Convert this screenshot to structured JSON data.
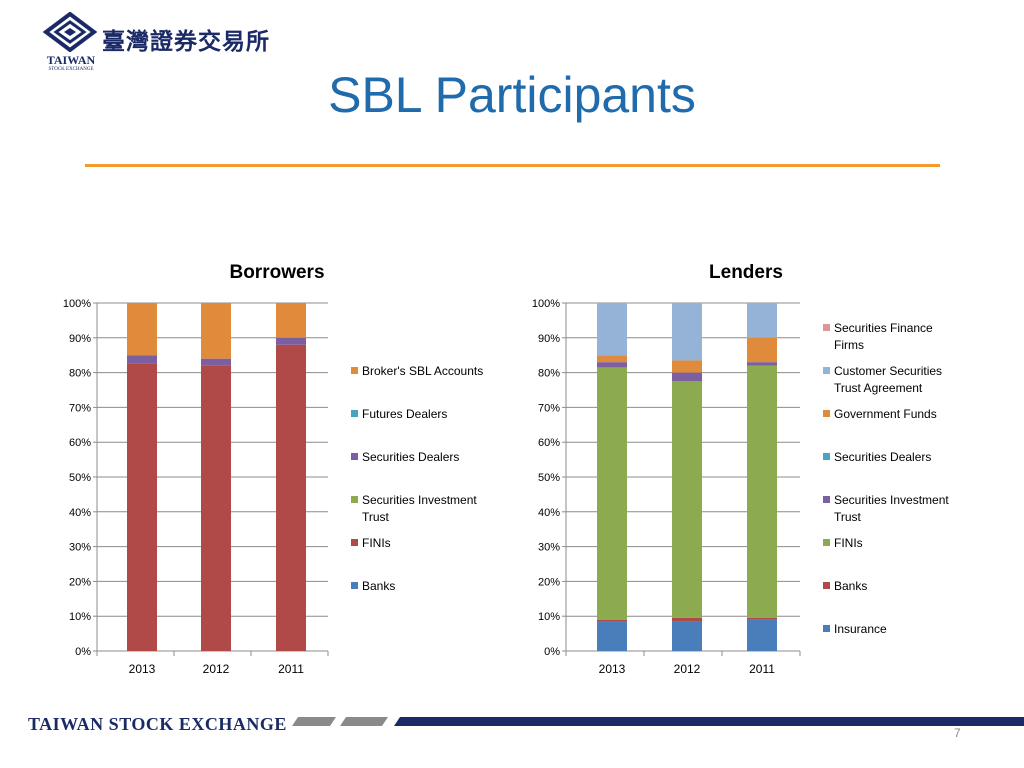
{
  "header": {
    "logo_name": "TAIWAN",
    "logo_subname": "STOCK EXCHANGE",
    "logo_chinese": "臺灣證券交易所",
    "title": "SBL Participants"
  },
  "footer": {
    "text": "TAIWAN STOCK EXCHANGE",
    "page_number": "7"
  },
  "colors": {
    "title": "#1f6bab",
    "rule": "#f29a2e",
    "footer_bar": "#1a2a66"
  },
  "chart_data": [
    {
      "type": "bar",
      "stacked": true,
      "percent": true,
      "title": "Borrowers",
      "categories": [
        "2013",
        "2012",
        "2011"
      ],
      "y_ticks": [
        "0%",
        "10%",
        "20%",
        "30%",
        "40%",
        "50%",
        "60%",
        "70%",
        "80%",
        "90%",
        "100%"
      ],
      "ylim": [
        0,
        100
      ],
      "legend_position": "right",
      "series": [
        {
          "name": "Banks",
          "color": "#4a7ebb",
          "values": [
            0,
            0,
            0
          ]
        },
        {
          "name": "FINIs",
          "color": "#b04a48",
          "values": [
            82.5,
            82,
            88
          ]
        },
        {
          "name": "Securities Investment Trust",
          "color": "#8bab4e",
          "values": [
            0,
            0,
            0
          ]
        },
        {
          "name": "Securities Dealers",
          "color": "#7b5fa0",
          "values": [
            2.5,
            2,
            2
          ]
        },
        {
          "name": "Futures Dealers",
          "color": "#48a5c0",
          "values": [
            0,
            0,
            0
          ]
        },
        {
          "name": "Broker's SBL Accounts",
          "color": "#e08a3c",
          "values": [
            15,
            16,
            10
          ]
        }
      ],
      "legend_order": [
        "Broker's SBL Accounts",
        "Futures Dealers",
        "Securities Dealers",
        "Securities Investment Trust",
        "FINIs",
        "Banks"
      ]
    },
    {
      "type": "bar",
      "stacked": true,
      "percent": true,
      "title": "Lenders",
      "categories": [
        "2013",
        "2012",
        "2011"
      ],
      "y_ticks": [
        "0%",
        "10%",
        "20%",
        "30%",
        "40%",
        "50%",
        "60%",
        "70%",
        "80%",
        "90%",
        "100%"
      ],
      "ylim": [
        0,
        100
      ],
      "legend_position": "right",
      "series": [
        {
          "name": "Insurance",
          "color": "#4a7ebb",
          "values": [
            8.5,
            8.5,
            9
          ]
        },
        {
          "name": "Banks",
          "color": "#b04a48",
          "values": [
            0.5,
            1,
            0.5
          ]
        },
        {
          "name": "FINIs",
          "color": "#8bab4e",
          "values": [
            72.5,
            68,
            72.5
          ]
        },
        {
          "name": "Securities Investment Trust",
          "color": "#7b5fa0",
          "values": [
            1.5,
            2.5,
            1
          ]
        },
        {
          "name": "Securities Dealers",
          "color": "#48a5c0",
          "values": [
            0,
            0,
            0
          ]
        },
        {
          "name": "Government Funds",
          "color": "#e08a3c",
          "values": [
            2,
            3.5,
            7
          ]
        },
        {
          "name": "Customer Securities Trust Agreement",
          "color": "#95b3d7",
          "values": [
            15,
            16.5,
            10
          ]
        },
        {
          "name": "Securities Finance Firms",
          "color": "#d99795",
          "values": [
            0,
            0,
            0
          ]
        }
      ],
      "legend_order": [
        "Securities Finance Firms",
        "Customer Securities Trust Agreement",
        "Government Funds",
        "Securities Dealers",
        "Securities Investment Trust",
        "FINIs",
        "Banks",
        "Insurance"
      ]
    }
  ]
}
